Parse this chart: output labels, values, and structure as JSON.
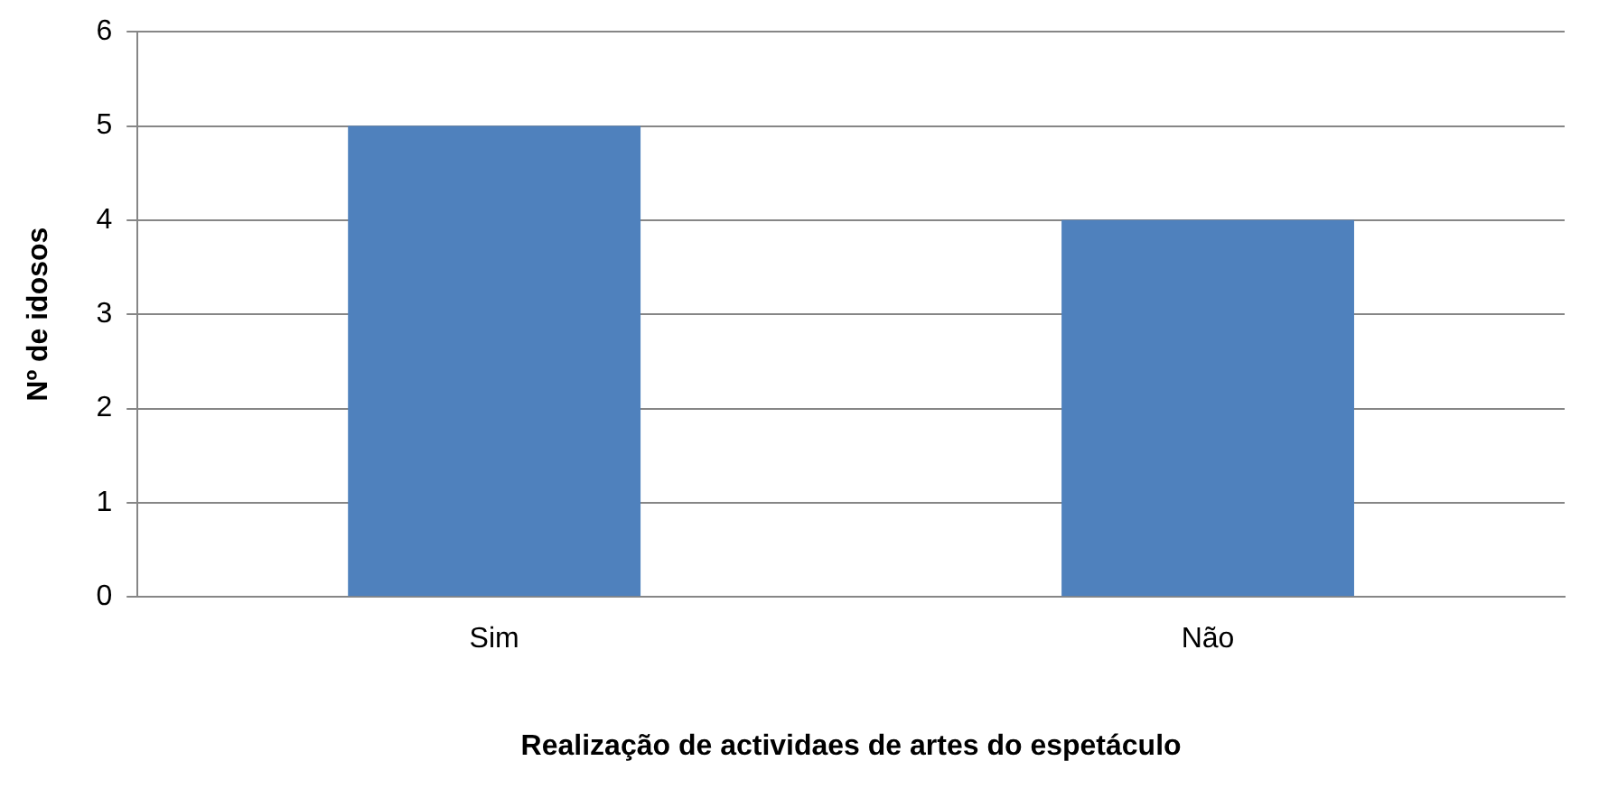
{
  "chart_data": {
    "type": "bar",
    "xlabel": "Realização de actividaes de artes do espetáculo",
    "ylabel": "Nº de idosos",
    "categories": [
      "Sim",
      "Não"
    ],
    "values": [
      5,
      4
    ],
    "color": "#4f81bd",
    "ylim": [
      0,
      6
    ],
    "yticks": [
      0,
      1,
      2,
      3,
      4,
      5,
      6
    ],
    "grid": "y",
    "legend": false
  }
}
